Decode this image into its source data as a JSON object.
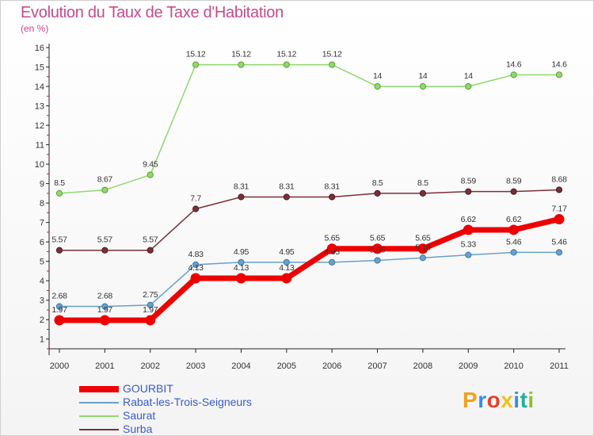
{
  "chart_data": {
    "type": "line",
    "title": "Evolution du Taux de Taxe d'Habitation",
    "subtitle": "(en %)",
    "x": [
      "2000",
      "2001",
      "2002",
      "2003",
      "2004",
      "2005",
      "2006",
      "2007",
      "2008",
      "2009",
      "2010",
      "2011"
    ],
    "yticks": [
      "1",
      "2",
      "3",
      "4",
      "5",
      "6",
      "7",
      "8",
      "9",
      "10",
      "11",
      "12",
      "13",
      "14",
      "15",
      "16"
    ],
    "ylim": [
      0.5,
      16
    ],
    "grid": false,
    "legend_position": "bottom-left",
    "series": [
      {
        "name": "GOURBIT",
        "color": "#ee0000",
        "values": [
          1.97,
          1.97,
          1.97,
          4.13,
          4.13,
          4.13,
          5.65,
          5.65,
          5.65,
          6.62,
          6.62,
          7.17
        ],
        "labels": [
          "1.97",
          "1.97",
          "1.97",
          "4.13",
          "4.13",
          "4.13",
          "5.65",
          "5.65",
          "5.65",
          "6.62",
          "6.62",
          "7.17"
        ]
      },
      {
        "name": "Rabat-les-Trois-Seigneurs",
        "color": "#6aa0c8",
        "values": [
          2.68,
          2.68,
          2.75,
          4.83,
          4.95,
          4.95,
          4.95,
          5.05,
          5.18,
          5.33,
          5.46,
          5.46
        ],
        "labels": [
          "2.68",
          "2.68",
          "2.75",
          "4.83",
          "4.95",
          "4.95",
          "4.95",
          "5.05",
          "5.18",
          "5.33",
          "5.46",
          "5.46"
        ]
      },
      {
        "name": "Saurat",
        "color": "#90d870",
        "values": [
          8.5,
          8.67,
          9.45,
          15.12,
          15.12,
          15.12,
          15.12,
          14,
          14,
          14,
          14.6,
          14.6
        ],
        "labels": [
          "8.5",
          "8.67",
          "9.45",
          "15.12",
          "15.12",
          "15.12",
          "15.12",
          "14",
          "14",
          "14",
          "14.6",
          "14.6"
        ]
      },
      {
        "name": "Surba",
        "color": "#7a3038",
        "values": [
          5.57,
          5.57,
          5.57,
          7.7,
          8.31,
          8.31,
          8.31,
          8.5,
          8.5,
          8.59,
          8.59,
          8.68
        ],
        "labels": [
          "5.57",
          "5.57",
          "5.57",
          "7.7",
          "8.31",
          "8.31",
          "8.31",
          "8.5",
          "8.5",
          "8.59",
          "8.59",
          "8.68"
        ]
      }
    ]
  },
  "logo": {
    "text": "Proxiti",
    "colors": [
      "#f2a020",
      "#3a8ee0",
      "#e8402a",
      "#f2c020",
      "#3a8ee0",
      "#20b0a0",
      "#90c030"
    ]
  }
}
